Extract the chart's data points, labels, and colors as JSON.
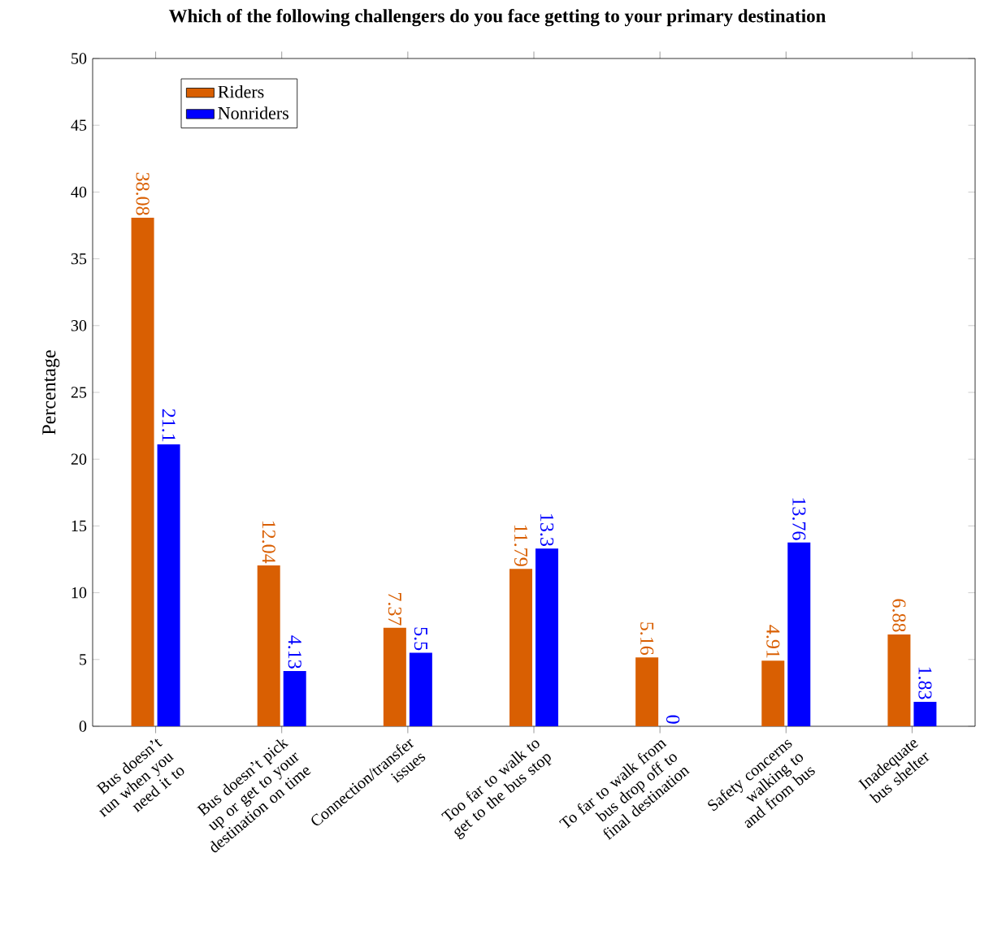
{
  "chart_data": {
    "type": "bar",
    "title": "Which of the following challengers do you face getting to your primary destination",
    "ylabel": "Percentage",
    "categories": [
      "Bus doesn’t run when you need it to",
      "Bus doesn’t pick up or get to your destination on time",
      "Connection/transfer issues",
      "Too far to walk to get to the bus stop",
      "To far to walk from bus drop off to final destination",
      "Safety concerns walking to and from bus",
      "Inadequate bus shelter"
    ],
    "series": [
      {
        "name": "Riders",
        "color": "#d95f02",
        "values": [
          38.08,
          12.04,
          7.37,
          11.79,
          5.16,
          4.91,
          6.88
        ]
      },
      {
        "name": "Nonriders",
        "color": "#0000ff",
        "values": [
          21.1,
          4.13,
          5.5,
          13.3,
          0,
          13.76,
          1.83
        ]
      }
    ],
    "ylim": [
      0,
      50
    ],
    "yticks": [
      0,
      5,
      10,
      15,
      20,
      25,
      30,
      35,
      40,
      45,
      50
    ],
    "data_labels": true,
    "legend": "top left",
    "grid": false
  }
}
